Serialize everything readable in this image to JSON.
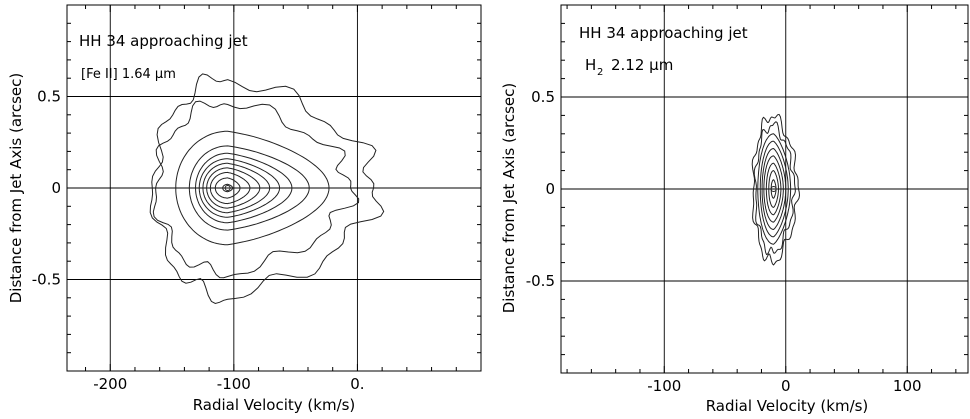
{
  "chart_data": [
    {
      "type": "contour",
      "title": "HH 34  approaching jet",
      "subtitle": "[Fe II]  1.64 μm",
      "xlabel": "Radial Velocity (km/s)",
      "ylabel": "Distance from Jet Axis (arcsec)",
      "xlim": [
        -235,
        100
      ],
      "ylim": [
        -1.0,
        1.0
      ],
      "xticks": [
        -200,
        -100,
        0
      ],
      "xtick_labels": [
        "-200",
        "-100",
        "0."
      ],
      "yticks": [
        0.5,
        0,
        -0.5
      ],
      "ytick_labels": [
        "0.5",
        "0",
        "-0.5"
      ],
      "grid": true,
      "peak": {
        "x": -105,
        "y": 0.0
      },
      "contour_levels": [
        {
          "cx": -105,
          "cy": 0,
          "rx_left": 4,
          "rx_right": 4,
          "ry": 0.02
        },
        {
          "cx": -105,
          "cy": 0,
          "rx_left": 10,
          "rx_right": 10,
          "ry": 0.055
        },
        {
          "cx": -105,
          "cy": 0,
          "rx_left": 14,
          "rx_right": 18,
          "ry": 0.085
        },
        {
          "cx": -105,
          "cy": 0,
          "rx_left": 17,
          "rx_right": 26,
          "ry": 0.11
        },
        {
          "cx": -105,
          "cy": 0,
          "rx_left": 20,
          "rx_right": 34,
          "ry": 0.135
        },
        {
          "cx": -105,
          "cy": 0,
          "rx_left": 23,
          "rx_right": 42,
          "ry": 0.16
        },
        {
          "cx": -105,
          "cy": 0,
          "rx_left": 26,
          "rx_right": 52,
          "ry": 0.19
        },
        {
          "cx": -105,
          "cy": 0,
          "rx_left": 31,
          "rx_right": 66,
          "ry": 0.23
        },
        {
          "cx": -105,
          "cy": 0,
          "rx_left": 42,
          "rx_right": 82,
          "ry": 0.31
        },
        {
          "cx": -105,
          "cy": 0,
          "rx_left": 58,
          "rx_right": 100,
          "ry": 0.47
        },
        {
          "cx": -105,
          "cy": 0,
          "rx_left": 60,
          "rx_right": 120,
          "ry": 0.6
        }
      ]
    },
    {
      "type": "contour",
      "title": "HH 34  approaching jet",
      "subtitle_main": "H",
      "subtitle_sub": "2",
      "subtitle_rest": "2.12 μm",
      "xlabel": "Radial Velocity (km/s)",
      "ylabel": "Distance from Jet Axis (arcsec)",
      "xlim": [
        -185,
        150
      ],
      "ylim": [
        -1.0,
        1.0
      ],
      "xticks": [
        -100,
        0,
        100
      ],
      "xtick_labels": [
        "-100",
        "0",
        "100"
      ],
      "yticks": [
        0.5,
        0,
        -0.5
      ],
      "ytick_labels": [
        "0.5",
        "0",
        "-0.5"
      ],
      "grid": true,
      "peak": {
        "x": -10,
        "y": 0.0
      },
      "contour_levels": [
        {
          "cx": -10,
          "cy": 0,
          "rx_left": 2,
          "rx_right": 2,
          "ry": 0.05
        },
        {
          "cx": -10,
          "cy": 0,
          "rx_left": 4,
          "rx_right": 4,
          "ry": 0.1
        },
        {
          "cx": -10,
          "cy": 0,
          "rx_left": 6,
          "rx_right": 6,
          "ry": 0.14
        },
        {
          "cx": -10,
          "cy": 0,
          "rx_left": 8,
          "rx_right": 8,
          "ry": 0.18
        },
        {
          "cx": -10,
          "cy": 0,
          "rx_left": 9.5,
          "rx_right": 10,
          "ry": 0.22
        },
        {
          "cx": -10,
          "cy": 0,
          "rx_left": 11,
          "rx_right": 12,
          "ry": 0.26
        },
        {
          "cx": -10,
          "cy": 0,
          "rx_left": 13,
          "rx_right": 14,
          "ry": 0.3
        },
        {
          "cx": -10,
          "cy": 0,
          "rx_left": 15,
          "rx_right": 17,
          "ry": 0.35
        },
        {
          "cx": -10,
          "cy": 0,
          "rx_left": 17,
          "rx_right": 20,
          "ry": 0.4
        }
      ]
    }
  ]
}
